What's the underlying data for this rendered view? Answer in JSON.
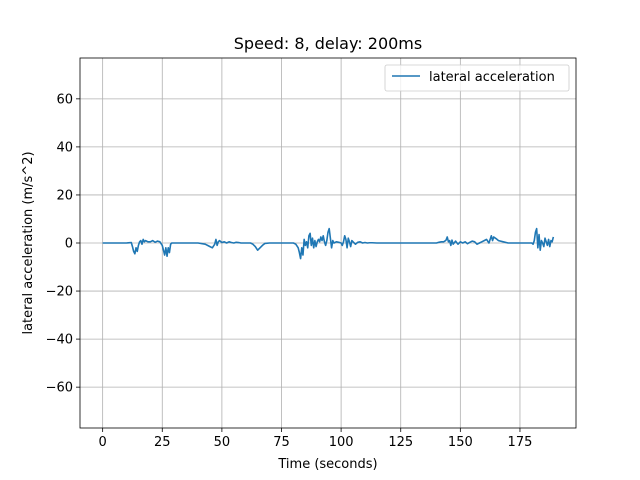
{
  "chart_data": {
    "type": "line",
    "title": "Speed: 8, delay: 200ms",
    "xlabel": "Time (seconds)",
    "ylabel": "lateral acceleration (m/s^2)",
    "xlim": [
      -9.5,
      198.5
    ],
    "ylim": [
      -77,
      77
    ],
    "xticks": [
      0,
      25,
      50,
      75,
      100,
      125,
      150,
      175
    ],
    "yticks": [
      -60,
      -40,
      -20,
      0,
      20,
      40,
      60
    ],
    "xtick_labels": [
      "0",
      "25",
      "50",
      "75",
      "100",
      "125",
      "150",
      "175"
    ],
    "ytick_labels": [
      "−60",
      "−40",
      "−20",
      "0",
      "20",
      "40",
      "60"
    ],
    "grid": true,
    "legend_position": "top-right",
    "color": "#1f77b4",
    "series": [
      {
        "name": "lateral acceleration",
        "x": [
          0,
          5,
          10,
          12,
          12.5,
          13,
          13.5,
          14,
          14.5,
          15,
          15.5,
          16,
          16.5,
          17,
          17.5,
          18,
          19,
          20,
          21,
          22,
          23,
          24,
          25,
          25.5,
          26,
          26.5,
          27,
          27.5,
          28,
          28.5,
          29,
          30,
          35,
          40,
          43,
          44,
          45,
          46,
          47,
          47.5,
          48,
          48.5,
          49,
          50,
          51,
          52,
          53,
          54,
          55,
          56,
          57,
          58,
          60,
          62,
          63,
          64,
          65,
          66,
          67,
          68,
          70,
          75,
          80,
          81,
          82,
          82.5,
          83,
          83.5,
          84,
          84.5,
          85,
          85.5,
          86,
          86.5,
          87,
          87.5,
          88,
          88.5,
          89,
          89.5,
          90,
          90.5,
          91,
          91.5,
          92,
          92.5,
          93,
          93.5,
          94,
          94.5,
          95,
          95.5,
          96,
          96.5,
          97,
          98,
          99,
          100,
          100.5,
          101,
          101.5,
          102,
          102.5,
          103,
          103.5,
          104,
          104.5,
          105,
          106,
          107,
          108,
          109,
          110,
          111,
          112,
          113,
          115,
          120,
          125,
          130,
          135,
          138,
          140,
          141,
          142,
          143,
          143.5,
          144,
          144.5,
          145,
          145.5,
          146,
          146.5,
          147,
          148,
          149,
          150,
          151,
          152,
          153,
          154,
          155,
          156,
          157,
          158,
          159,
          160,
          161,
          162,
          162.5,
          163,
          163.5,
          164,
          165,
          166,
          168,
          170,
          175,
          180,
          180.5,
          181,
          181.5,
          182,
          182.5,
          183,
          183.5,
          184,
          184.5,
          185,
          185.5,
          186,
          186.5,
          187,
          187.5,
          188,
          188.5,
          189
        ],
        "y": [
          0,
          0,
          0,
          0.2,
          -1.5,
          -3.5,
          -4.5,
          -2,
          -3.5,
          -1,
          0.5,
          1,
          -0.5,
          1.5,
          0.5,
          1,
          0.5,
          0.5,
          1,
          0.3,
          0.8,
          0.5,
          -1,
          -3,
          -5,
          -2,
          -5.5,
          -2,
          -4,
          -0.5,
          0,
          0,
          0,
          0,
          -0.5,
          -1,
          -1.5,
          -2,
          -0.5,
          1.5,
          -1,
          0.5,
          1,
          0.2,
          0.5,
          0,
          0.5,
          0.2,
          0,
          0.3,
          0.2,
          0,
          0,
          0,
          -0.5,
          -1.5,
          -3,
          -2,
          -1,
          -0.2,
          0,
          0,
          0,
          -0.5,
          -2,
          -4,
          -6.5,
          -2,
          -5,
          1.5,
          -1,
          0.5,
          -2,
          3,
          4,
          -1,
          2,
          -2,
          1,
          -1.5,
          0.5,
          1.5,
          0.5,
          2.5,
          1,
          3,
          0.5,
          -1,
          1,
          4.5,
          6,
          2,
          -2,
          1,
          0,
          0.5,
          0.3,
          0,
          -1,
          0.5,
          3,
          1.5,
          -2,
          2,
          0.5,
          -1.5,
          1,
          0.5,
          -0.5,
          0.3,
          0.5,
          0,
          0.2,
          0,
          0.1,
          0.1,
          0,
          0,
          0,
          0,
          0,
          0,
          0,
          0.3,
          0.5,
          0.5,
          0.8,
          1.2,
          2.5,
          0.5,
          1,
          -1,
          1.2,
          -0.5,
          0.8,
          -0.5,
          0.5,
          0,
          0.5,
          -0.3,
          0.3,
          0.8,
          0.5,
          -0.5,
          0,
          0.5,
          1,
          1.5,
          0,
          1.5,
          3,
          1,
          2.5,
          1.8,
          1,
          0.5,
          0,
          0,
          0,
          -0.5,
          1,
          4.5,
          6,
          -2,
          3.5,
          -3,
          1,
          0,
          -1.5,
          2,
          0.5,
          -1,
          1.5,
          -1.5,
          1,
          0.5,
          2.5
        ]
      }
    ]
  }
}
